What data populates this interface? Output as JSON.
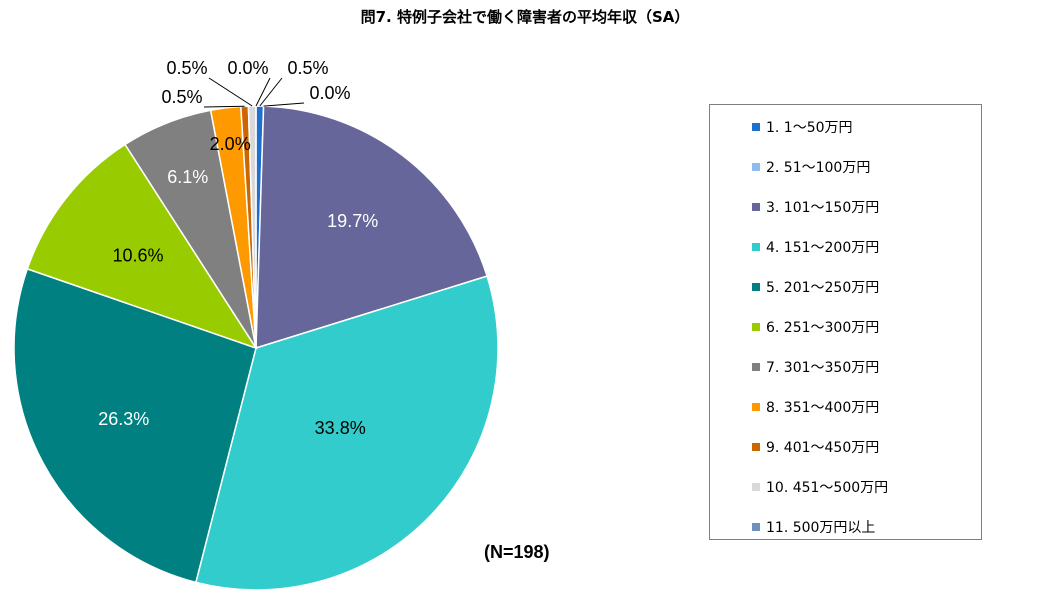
{
  "chart_data": {
    "type": "pie",
    "title": "問7. 特例子会社で働く障害者の平均年収（SA）",
    "note": "(N=198)",
    "legend_position": "right",
    "categories": [
      "1. 1～50万円",
      "2. 51～100万円",
      "3. 101～150万円",
      "4. 151～200万円",
      "5. 201～250万円",
      "6. 251～300万円",
      "7. 301～350万円",
      "8. 351～400万円",
      "9. 401～450万円",
      "10. 451～500万円",
      "11. 500万円以上"
    ],
    "values": [
      0.5,
      0.0,
      19.7,
      33.8,
      26.3,
      10.6,
      6.1,
      2.0,
      0.5,
      0.5,
      0.0
    ],
    "data_labels": [
      "0.5%",
      "0.0%",
      "19.7%",
      "33.8%",
      "26.3%",
      "10.6%",
      "6.1%",
      "2.0%",
      "0.5%",
      "0.5%",
      "0.0%"
    ],
    "colors": [
      "#1f6fd1",
      "#8fbcef",
      "#66669a",
      "#33cccc",
      "#008080",
      "#99cc00",
      "#808080",
      "#ff9900",
      "#cc6600",
      "#d9d9d9",
      "#6f8fbf"
    ]
  }
}
